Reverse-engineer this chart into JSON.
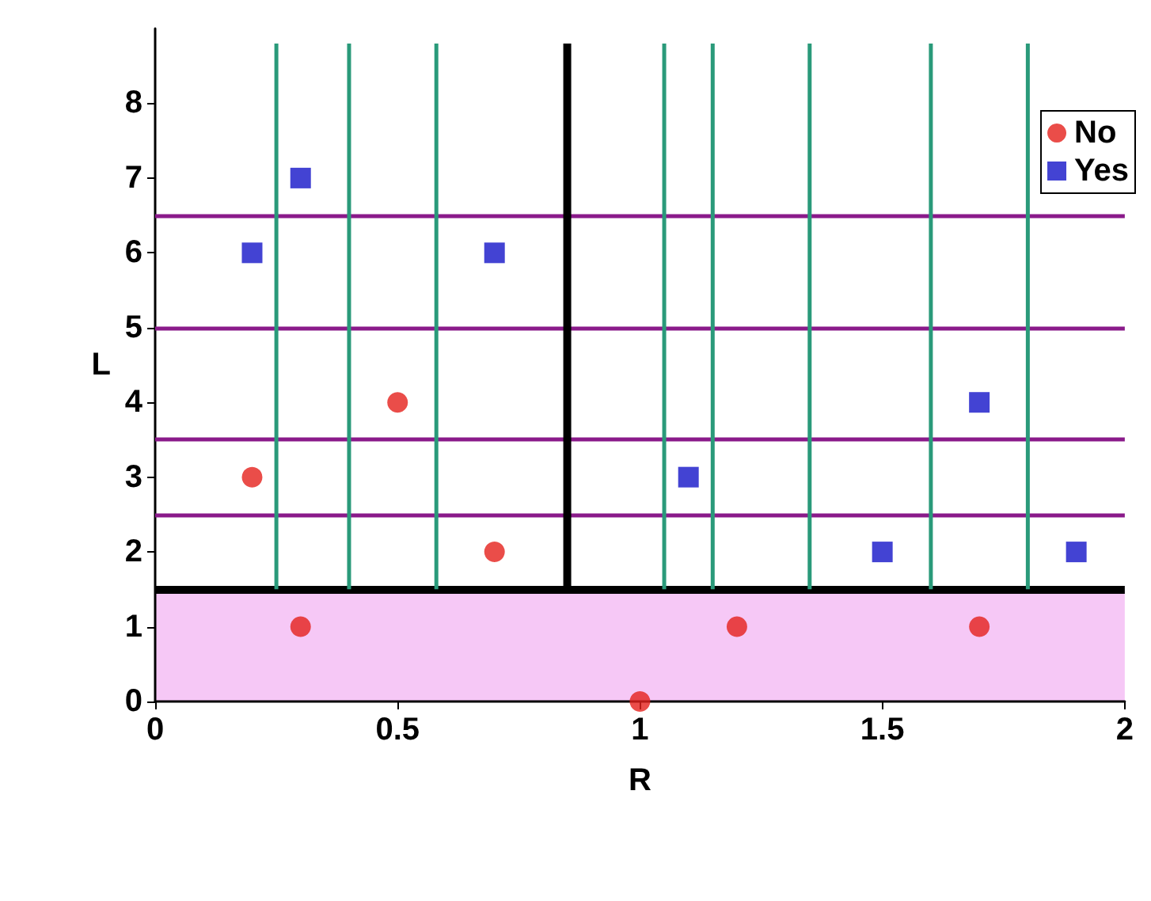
{
  "chart_data": {
    "type": "scatter",
    "xlabel": "R",
    "ylabel": "L",
    "xlim": [
      0,
      2
    ],
    "xticks": [
      0,
      0.5,
      1,
      1.5,
      2
    ],
    "ylim": [
      0,
      9
    ],
    "yticks": [
      0,
      1,
      2,
      3,
      4,
      5,
      6,
      7,
      8
    ],
    "grid": false,
    "legend": "top right",
    "series": [
      {
        "name": "No",
        "color": "#e5201c",
        "marker": "circle",
        "x": [
          0.3,
          0.5,
          0.2,
          0.7,
          1.2,
          1.7,
          1
        ],
        "values": [
          1,
          4,
          3,
          2,
          1,
          1,
          0
        ]
      },
      {
        "name": "Yes",
        "color": "#1414c8",
        "marker": "square",
        "x": [
          0.3,
          0.2,
          0.7,
          1.1,
          1.5,
          1.7,
          1.9
        ],
        "values": [
          7,
          6,
          6,
          3,
          2,
          4,
          2
        ]
      },
      {
        "type": "line",
        "color": "#2a9a7a",
        "x": [
          0.25,
          0.25
        ],
        "values": [
          1.5,
          8.8
        ]
      },
      {
        "type": "line",
        "color": "#2a9a7a",
        "x": [
          0.4,
          0.4
        ],
        "values": [
          1.5,
          8.8
        ]
      },
      {
        "type": "line",
        "color": "#2a9a7a",
        "x": [
          0.58,
          0.58
        ],
        "values": [
          1.5,
          8.8
        ]
      },
      {
        "type": "line",
        "color": "#000000",
        "x": [
          0.85,
          0.85
        ],
        "values": [
          1.5,
          8.8
        ]
      },
      {
        "type": "line",
        "color": "#2a9a7a",
        "x": [
          1.05,
          1.05
        ],
        "values": [
          1.5,
          8.8
        ]
      },
      {
        "type": "line",
        "color": "#2a9a7a",
        "x": [
          1.15,
          1.15
        ],
        "values": [
          1.5,
          8.8
        ]
      },
      {
        "type": "line",
        "color": "#2a9a7a",
        "x": [
          1.35,
          1.35
        ],
        "values": [
          1.5,
          8.8
        ]
      },
      {
        "type": "line",
        "color": "#2a9a7a",
        "x": [
          1.6,
          1.6
        ],
        "values": [
          1.5,
          8.8
        ]
      },
      {
        "type": "line",
        "color": "#2a9a7a",
        "x": [
          1.8,
          1.8
        ],
        "values": [
          1.5,
          8.8
        ]
      }
    ],
    "ref_lines": [
      {
        "axis": "y",
        "value": 6.5,
        "color": "#8a1a8a"
      },
      {
        "axis": "y",
        "value": 5,
        "color": "#8a1a8a"
      },
      {
        "axis": "y",
        "value": 3.5,
        "color": "#8a1a8a"
      },
      {
        "axis": "y",
        "value": 2.5,
        "color": "#8a1a8a"
      },
      {
        "axis": "y",
        "value": 1.5,
        "color": "#000000"
      }
    ],
    "bands": [
      {
        "axis": "y",
        "from": 0,
        "to": 1.5,
        "color": "#f6c8f6"
      }
    ]
  }
}
